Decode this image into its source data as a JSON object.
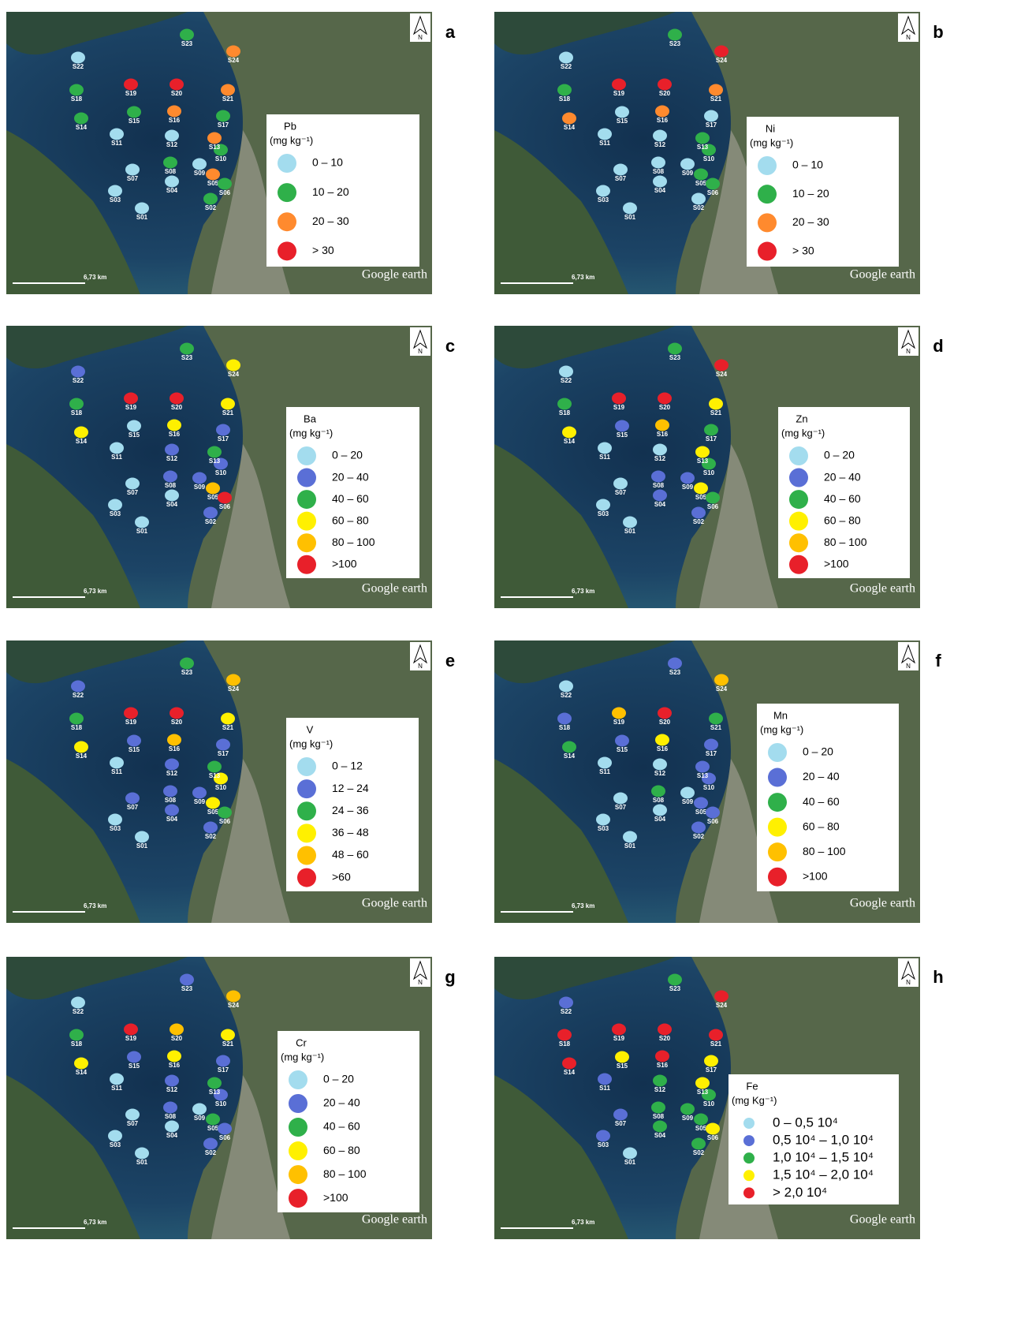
{
  "scale_label": "6,73 km",
  "attribution": "Google earth",
  "north": "N",
  "stations": [
    "S01",
    "S02",
    "S03",
    "S04",
    "S05",
    "S06",
    "S07",
    "S08",
    "S09",
    "S10",
    "S11",
    "S12",
    "S13",
    "S14",
    "S15",
    "S16",
    "S17",
    "S18",
    "S19",
    "S20",
    "S21",
    "S22",
    "S23",
    "S24"
  ],
  "panels": [
    {
      "letter": "a",
      "legend": {
        "title": "Pb",
        "unit": "(mg kg⁻¹)",
        "items": [
          {
            "label": "0 – 10",
            "color": "#a3dcee"
          },
          {
            "label": "10 – 20",
            "color": "#2fb04a"
          },
          {
            "label": "20 – 30",
            "color": "#ff8a2e"
          },
          {
            "label": "> 30",
            "color": "#e8202a"
          }
        ]
      },
      "station_class": [
        0,
        1,
        0,
        0,
        2,
        1,
        0,
        1,
        0,
        1,
        0,
        0,
        2,
        1,
        1,
        2,
        1,
        1,
        3,
        3,
        2,
        0,
        1,
        2
      ]
    },
    {
      "letter": "b",
      "legend": {
        "title": "Ni",
        "unit": "(mg kg⁻¹)",
        "items": [
          {
            "label": "0 – 10",
            "color": "#a3dcee"
          },
          {
            "label": "10 – 20",
            "color": "#2fb04a"
          },
          {
            "label": "20 – 30",
            "color": "#ff8a2e"
          },
          {
            "label": "> 30",
            "color": "#e8202a"
          }
        ]
      },
      "station_class": [
        0,
        0,
        0,
        0,
        1,
        1,
        0,
        0,
        0,
        1,
        0,
        0,
        1,
        2,
        0,
        2,
        0,
        1,
        3,
        3,
        2,
        0,
        1,
        3
      ]
    },
    {
      "letter": "c",
      "legend": {
        "title": "Ba",
        "unit": "(mg kg⁻¹)",
        "items": [
          {
            "label": "0 – 20",
            "color": "#a3dcee"
          },
          {
            "label": "20 – 40",
            "color": "#5a6fd6"
          },
          {
            "label": "40 – 60",
            "color": "#2fb04a"
          },
          {
            "label": "60 – 80",
            "color": "#fff000"
          },
          {
            "label": "80 – 100",
            "color": "#ffc000"
          },
          {
            "label": ">100",
            "color": "#e8202a"
          }
        ]
      },
      "station_class": [
        0,
        1,
        0,
        0,
        4,
        5,
        0,
        1,
        1,
        1,
        0,
        1,
        2,
        3,
        0,
        3,
        1,
        2,
        5,
        5,
        3,
        1,
        2,
        3
      ]
    },
    {
      "letter": "d",
      "legend": {
        "title": "Zn",
        "unit": "(mg kg⁻¹)",
        "items": [
          {
            "label": "0 – 20",
            "color": "#a3dcee"
          },
          {
            "label": "20 – 40",
            "color": "#5a6fd6"
          },
          {
            "label": "40 – 60",
            "color": "#2fb04a"
          },
          {
            "label": "60 – 80",
            "color": "#fff000"
          },
          {
            "label": "80 – 100",
            "color": "#ffc000"
          },
          {
            "label": ">100",
            "color": "#e8202a"
          }
        ]
      },
      "station_class": [
        0,
        1,
        0,
        1,
        3,
        2,
        0,
        1,
        1,
        2,
        0,
        0,
        3,
        3,
        1,
        4,
        2,
        2,
        5,
        5,
        3,
        0,
        2,
        5
      ]
    },
    {
      "letter": "e",
      "legend": {
        "title": "V",
        "unit": "(mg kg⁻¹)",
        "items": [
          {
            "label": "0 – 12",
            "color": "#a3dcee"
          },
          {
            "label": "12 – 24",
            "color": "#5a6fd6"
          },
          {
            "label": "24 – 36",
            "color": "#2fb04a"
          },
          {
            "label": "36 – 48",
            "color": "#fff000"
          },
          {
            "label": "48 – 60",
            "color": "#ffc000"
          },
          {
            "label": ">60",
            "color": "#e8202a"
          }
        ]
      },
      "station_class": [
        0,
        1,
        0,
        1,
        3,
        2,
        1,
        1,
        1,
        3,
        0,
        1,
        2,
        3,
        1,
        4,
        1,
        2,
        5,
        5,
        3,
        1,
        2,
        4
      ]
    },
    {
      "letter": "f",
      "legend": {
        "title": "Mn",
        "unit": "(mg kg⁻¹)",
        "items": [
          {
            "label": "0 – 20",
            "color": "#a3dcee"
          },
          {
            "label": "20 – 40",
            "color": "#5a6fd6"
          },
          {
            "label": "40 – 60",
            "color": "#2fb04a"
          },
          {
            "label": "60 – 80",
            "color": "#fff000"
          },
          {
            "label": "80 – 100",
            "color": "#ffc000"
          },
          {
            "label": ">100",
            "color": "#e8202a"
          }
        ]
      },
      "station_class": [
        0,
        1,
        0,
        0,
        1,
        1,
        0,
        2,
        0,
        1,
        0,
        0,
        1,
        2,
        1,
        3,
        1,
        1,
        4,
        5,
        2,
        0,
        1,
        4
      ]
    },
    {
      "letter": "g",
      "legend": {
        "title": "Cr",
        "unit": "(mg kg⁻¹)",
        "items": [
          {
            "label": "0 – 20",
            "color": "#a3dcee"
          },
          {
            "label": "20 – 40",
            "color": "#5a6fd6"
          },
          {
            "label": "40 – 60",
            "color": "#2fb04a"
          },
          {
            "label": "60 – 80",
            "color": "#fff000"
          },
          {
            "label": "80 – 100",
            "color": "#ffc000"
          },
          {
            "label": ">100",
            "color": "#e8202a"
          }
        ]
      },
      "station_class": [
        0,
        1,
        0,
        0,
        2,
        1,
        0,
        1,
        0,
        1,
        0,
        1,
        2,
        3,
        1,
        3,
        1,
        2,
        5,
        4,
        3,
        0,
        1,
        4
      ]
    },
    {
      "letter": "h",
      "legend": {
        "title": "Fe",
        "unit": "(mg Kg⁻¹)",
        "items": [
          {
            "label": "0 – 0,5 10⁴",
            "color": "#a3dcee"
          },
          {
            "label": "0,5 10⁴ – 1,0 10⁴",
            "color": "#5a6fd6"
          },
          {
            "label": "1,0 10⁴ – 1,5 10⁴",
            "color": "#2fb04a"
          },
          {
            "label": "1,5 10⁴ – 2,0 10⁴",
            "color": "#fff000"
          },
          {
            "label": "> 2,0 10⁴",
            "color": "#e8202a"
          }
        ]
      },
      "station_class": [
        0,
        2,
        1,
        2,
        2,
        3,
        1,
        2,
        2,
        2,
        1,
        2,
        3,
        4,
        3,
        4,
        3,
        4,
        4,
        4,
        4,
        1,
        2,
        4
      ]
    }
  ]
}
